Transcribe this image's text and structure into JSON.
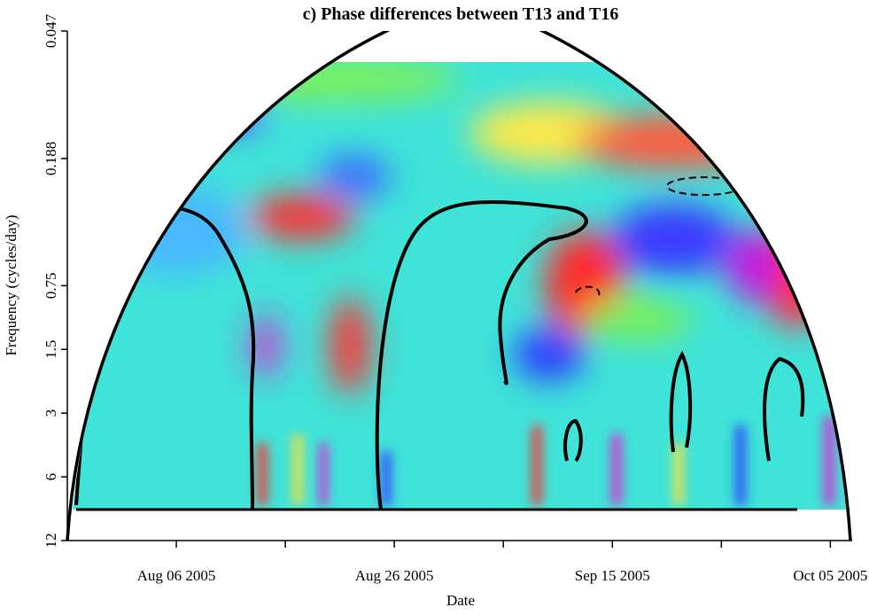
{
  "chart_data": {
    "type": "heatmap",
    "title": "c) Phase differences between  T13  and  T16",
    "x_label": "Date",
    "y_label": "Frequency (cycles/day)",
    "xlim": [
      "2005-07-27",
      "2005-10-07"
    ],
    "xticks": [
      {
        "value": "2005-08-06",
        "label": "Aug 06 2005"
      },
      {
        "value": "2005-08-16",
        "label": null
      },
      {
        "value": "2005-08-26",
        "label": "Aug 26 2005"
      },
      {
        "value": "2005-09-05",
        "label": null
      },
      {
        "value": "2005-09-15",
        "label": "Sep 15 2005"
      },
      {
        "value": "2005-09-25",
        "label": null
      },
      {
        "value": "2005-10-05",
        "label": "Oct 05 2005"
      }
    ],
    "ylim": [
      0.047,
      12
    ],
    "yticks": [
      0.047,
      0.188,
      0.75,
      1.5,
      3,
      6,
      12
    ],
    "y_log": true,
    "y_reversed": true
  }
}
